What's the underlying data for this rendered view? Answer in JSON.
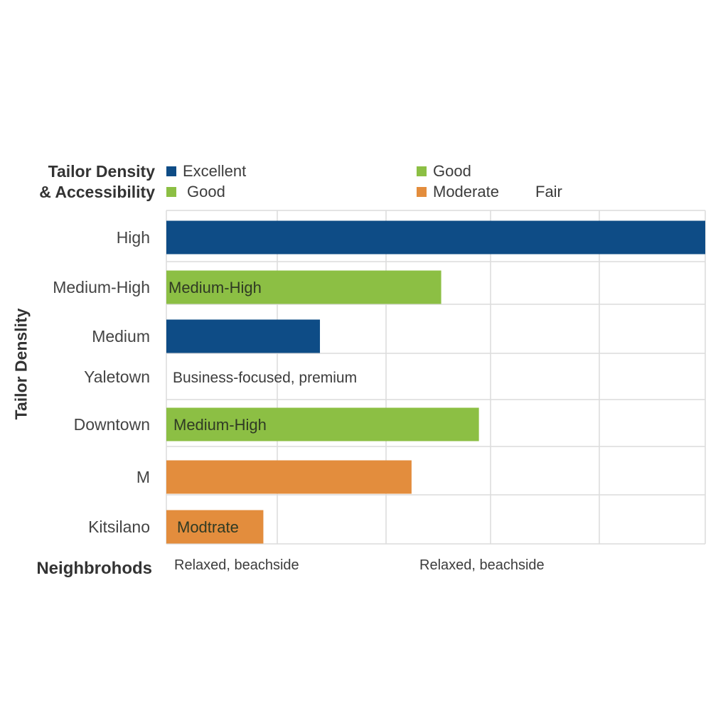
{
  "chart_data": {
    "type": "bar",
    "orientation": "horizontal",
    "title_lines": [
      "Tailor Density",
      "& Accessibility"
    ],
    "ylabel": "Tailor Denslity",
    "xlabel": "Neighbrohods",
    "categories": [
      "High",
      "Medium-High",
      "Medium",
      "Yaletown",
      "Downtown",
      "M",
      "Kitsilano"
    ],
    "values": [
      100,
      51,
      28.5,
      0,
      58,
      45.5,
      18
    ],
    "bar_colors": [
      "#0e4c86",
      "#8cbf44",
      "#0e4c86",
      null,
      "#8cbf44",
      "#e38d3d",
      "#e38d3d"
    ],
    "bar_labels": [
      "",
      "Medium-High",
      "",
      "Business-focused, premium",
      "Medium-High",
      "",
      "Modtrate"
    ],
    "xlim": [
      0,
      100
    ],
    "grid": true,
    "legend_position": "top",
    "legend": [
      {
        "label": "Excellent",
        "color": "#0e4c86"
      },
      {
        "label": "Good",
        "color": "#8cbf44"
      },
      {
        "label": "Good",
        "color": "#8cbf44"
      },
      {
        "label": "Moderate",
        "color": "#e38d3d"
      },
      {
        "label": "Fair",
        "color": null
      }
    ],
    "x_annotations": [
      "Relaxed, beachside",
      "Relaxed, beachside"
    ]
  }
}
